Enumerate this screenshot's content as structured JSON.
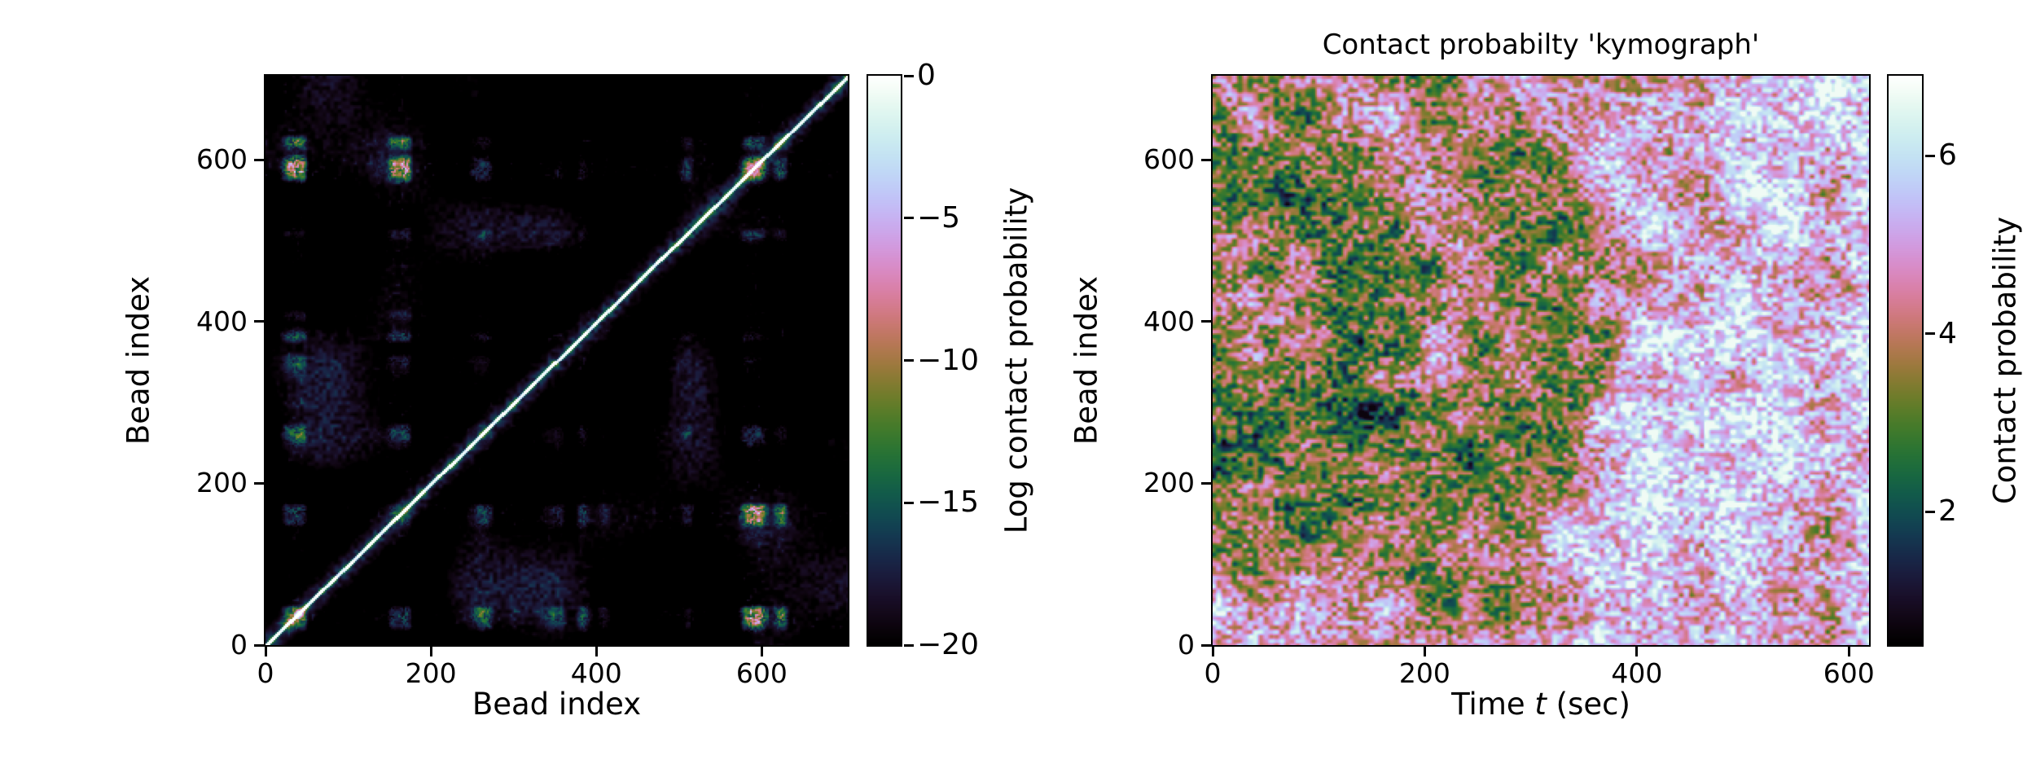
{
  "figure": {
    "background_color": "#ffffff",
    "colormap": "cubehelix",
    "text_color": "#000000"
  },
  "chart_data": [
    {
      "type": "heatmap",
      "panel": "left",
      "title": "",
      "xlabel": "Bead index",
      "ylabel": "Bead index",
      "xlim": [
        0,
        700
      ],
      "ylim": [
        0,
        700
      ],
      "xticks": [
        0,
        200,
        400,
        600
      ],
      "yticks": [
        0,
        200,
        400,
        600
      ],
      "colormap": "cubehelix",
      "colorbar": {
        "label": "Log contact probability",
        "ticks": [
          0,
          -5,
          -10,
          -15,
          -20
        ],
        "tick_labels": [
          "0",
          "−5",
          "−10",
          "−15",
          "−20"
        ],
        "vmin": -20,
        "vmax": 0
      },
      "description": "Symmetric log-scale contact-probability matrix for a ~700-bead polymer: bright white main diagonal (self contact, log p = 0), mostly black background (log p near -20), overlaid with a grid-like pattern of white/pink/green speckled streaks and blocks where bead pairs contact frequently."
    },
    {
      "type": "heatmap",
      "panel": "right",
      "title": "Contact probabilty 'kymograph'",
      "xlabel": "Time t (sec)",
      "xlabel_parts": {
        "pre": "Time ",
        "var": "t",
        "post": " (sec)"
      },
      "ylabel": "Bead index",
      "xlim": [
        0,
        620
      ],
      "ylim": [
        0,
        700
      ],
      "xticks": [
        0,
        200,
        400,
        600
      ],
      "yticks": [
        0,
        200,
        400,
        600
      ],
      "colormap": "cubehelix",
      "colorbar": {
        "label": "Contact probability",
        "ticks": [
          2,
          4,
          6
        ],
        "tick_labels": [
          "2",
          "4",
          "6"
        ],
        "vmin": 0.5,
        "vmax": 6.9
      },
      "description": "Kymograph of per-bead contact probability versus time: pale pink/white high-contact speckle (values ~5-7) over most of the field, with a mottled dark-green low-contact domain (values ~1-3) covering beads ~100-600 for t below ~300 s that dissolves at later times."
    }
  ]
}
